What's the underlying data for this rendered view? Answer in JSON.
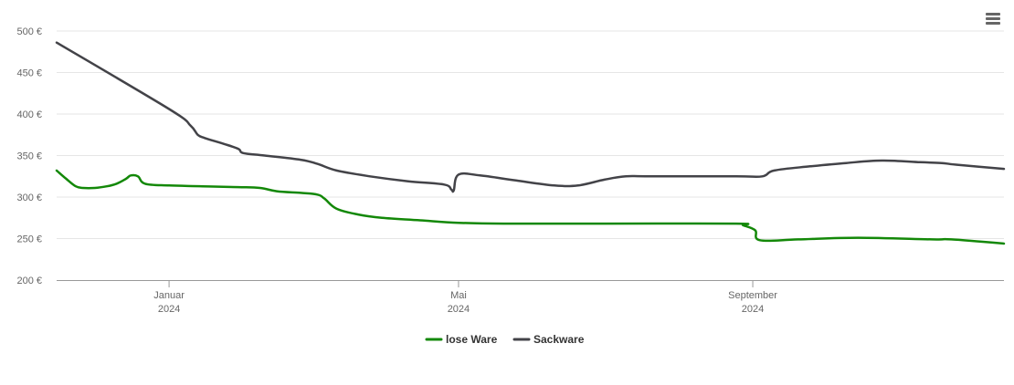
{
  "menu": {
    "icon": "hamburger-menu-icon"
  },
  "chart_data": {
    "type": "line",
    "title": "",
    "xlabel": "",
    "ylabel": "",
    "ylim": [
      200,
      500
    ],
    "y_ticks": [
      "200 €",
      "250 €",
      "300 €",
      "350 €",
      "400 €",
      "450 €",
      "500 €"
    ],
    "y_tick_values": [
      200,
      250,
      300,
      350,
      400,
      450,
      500
    ],
    "xlim": [
      "2023-11-15",
      "2024-12-15"
    ],
    "x_ticks": [
      {
        "date": "2024-01-01",
        "month": "Januar",
        "year": "2024"
      },
      {
        "date": "2024-05-01",
        "month": "Mai",
        "year": "2024"
      },
      {
        "date": "2024-09-01",
        "month": "September",
        "year": "2024"
      }
    ],
    "grid": true,
    "legend_position": "bottom-center",
    "series": [
      {
        "name": "lose Ware",
        "color": "#138808",
        "points": [
          [
            "2023-11-15",
            332
          ],
          [
            "2023-11-19",
            322
          ],
          [
            "2023-11-23",
            313
          ],
          [
            "2023-11-26",
            311
          ],
          [
            "2023-12-01",
            311
          ],
          [
            "2023-12-06",
            313
          ],
          [
            "2023-12-10",
            316
          ],
          [
            "2023-12-14",
            322
          ],
          [
            "2023-12-16",
            326
          ],
          [
            "2023-12-19",
            325
          ],
          [
            "2023-12-22",
            316
          ],
          [
            "2024-01-01",
            314
          ],
          [
            "2024-01-15",
            313
          ],
          [
            "2024-01-30",
            312
          ],
          [
            "2024-02-08",
            311
          ],
          [
            "2024-02-15",
            307
          ],
          [
            "2024-02-25",
            305
          ],
          [
            "2024-03-03",
            303
          ],
          [
            "2024-03-06",
            298
          ],
          [
            "2024-03-11",
            286
          ],
          [
            "2024-03-20",
            279
          ],
          [
            "2024-03-30",
            275
          ],
          [
            "2024-04-15",
            272
          ],
          [
            "2024-05-01",
            269
          ],
          [
            "2024-05-20",
            268
          ],
          [
            "2024-07-01",
            268
          ],
          [
            "2024-08-25",
            268
          ],
          [
            "2024-08-28",
            266
          ],
          [
            "2024-09-02",
            260
          ],
          [
            "2024-09-04",
            248
          ],
          [
            "2024-09-20",
            249
          ],
          [
            "2024-10-15",
            251
          ],
          [
            "2024-11-15",
            249
          ],
          [
            "2024-11-23",
            249
          ],
          [
            "2024-12-15",
            244
          ]
        ]
      },
      {
        "name": "Sackware",
        "color": "#434348",
        "points": [
          [
            "2023-11-15",
            486
          ],
          [
            "2024-01-01",
            406
          ],
          [
            "2024-01-10",
            386
          ],
          [
            "2024-01-13",
            375
          ],
          [
            "2024-01-16",
            371
          ],
          [
            "2024-01-24",
            364
          ],
          [
            "2024-01-30",
            358
          ],
          [
            "2024-02-01",
            353
          ],
          [
            "2024-02-10",
            350
          ],
          [
            "2024-02-25",
            345
          ],
          [
            "2024-03-03",
            340
          ],
          [
            "2024-03-11",
            332
          ],
          [
            "2024-03-25",
            325
          ],
          [
            "2024-04-10",
            319
          ],
          [
            "2024-04-25",
            315
          ],
          [
            "2024-04-28",
            309
          ],
          [
            "2024-04-29",
            308
          ],
          [
            "2024-05-01",
            327
          ],
          [
            "2024-05-10",
            326
          ],
          [
            "2024-05-25",
            320
          ],
          [
            "2024-06-10",
            314
          ],
          [
            "2024-06-20",
            314
          ],
          [
            "2024-07-01",
            321
          ],
          [
            "2024-07-10",
            325
          ],
          [
            "2024-07-20",
            325
          ],
          [
            "2024-08-25",
            325
          ],
          [
            "2024-09-05",
            325
          ],
          [
            "2024-09-10",
            332
          ],
          [
            "2024-09-25",
            337
          ],
          [
            "2024-10-10",
            341
          ],
          [
            "2024-10-25",
            344
          ],
          [
            "2024-11-10",
            342
          ],
          [
            "2024-11-19",
            341
          ],
          [
            "2024-11-25",
            339
          ],
          [
            "2024-12-15",
            334
          ]
        ]
      }
    ]
  }
}
